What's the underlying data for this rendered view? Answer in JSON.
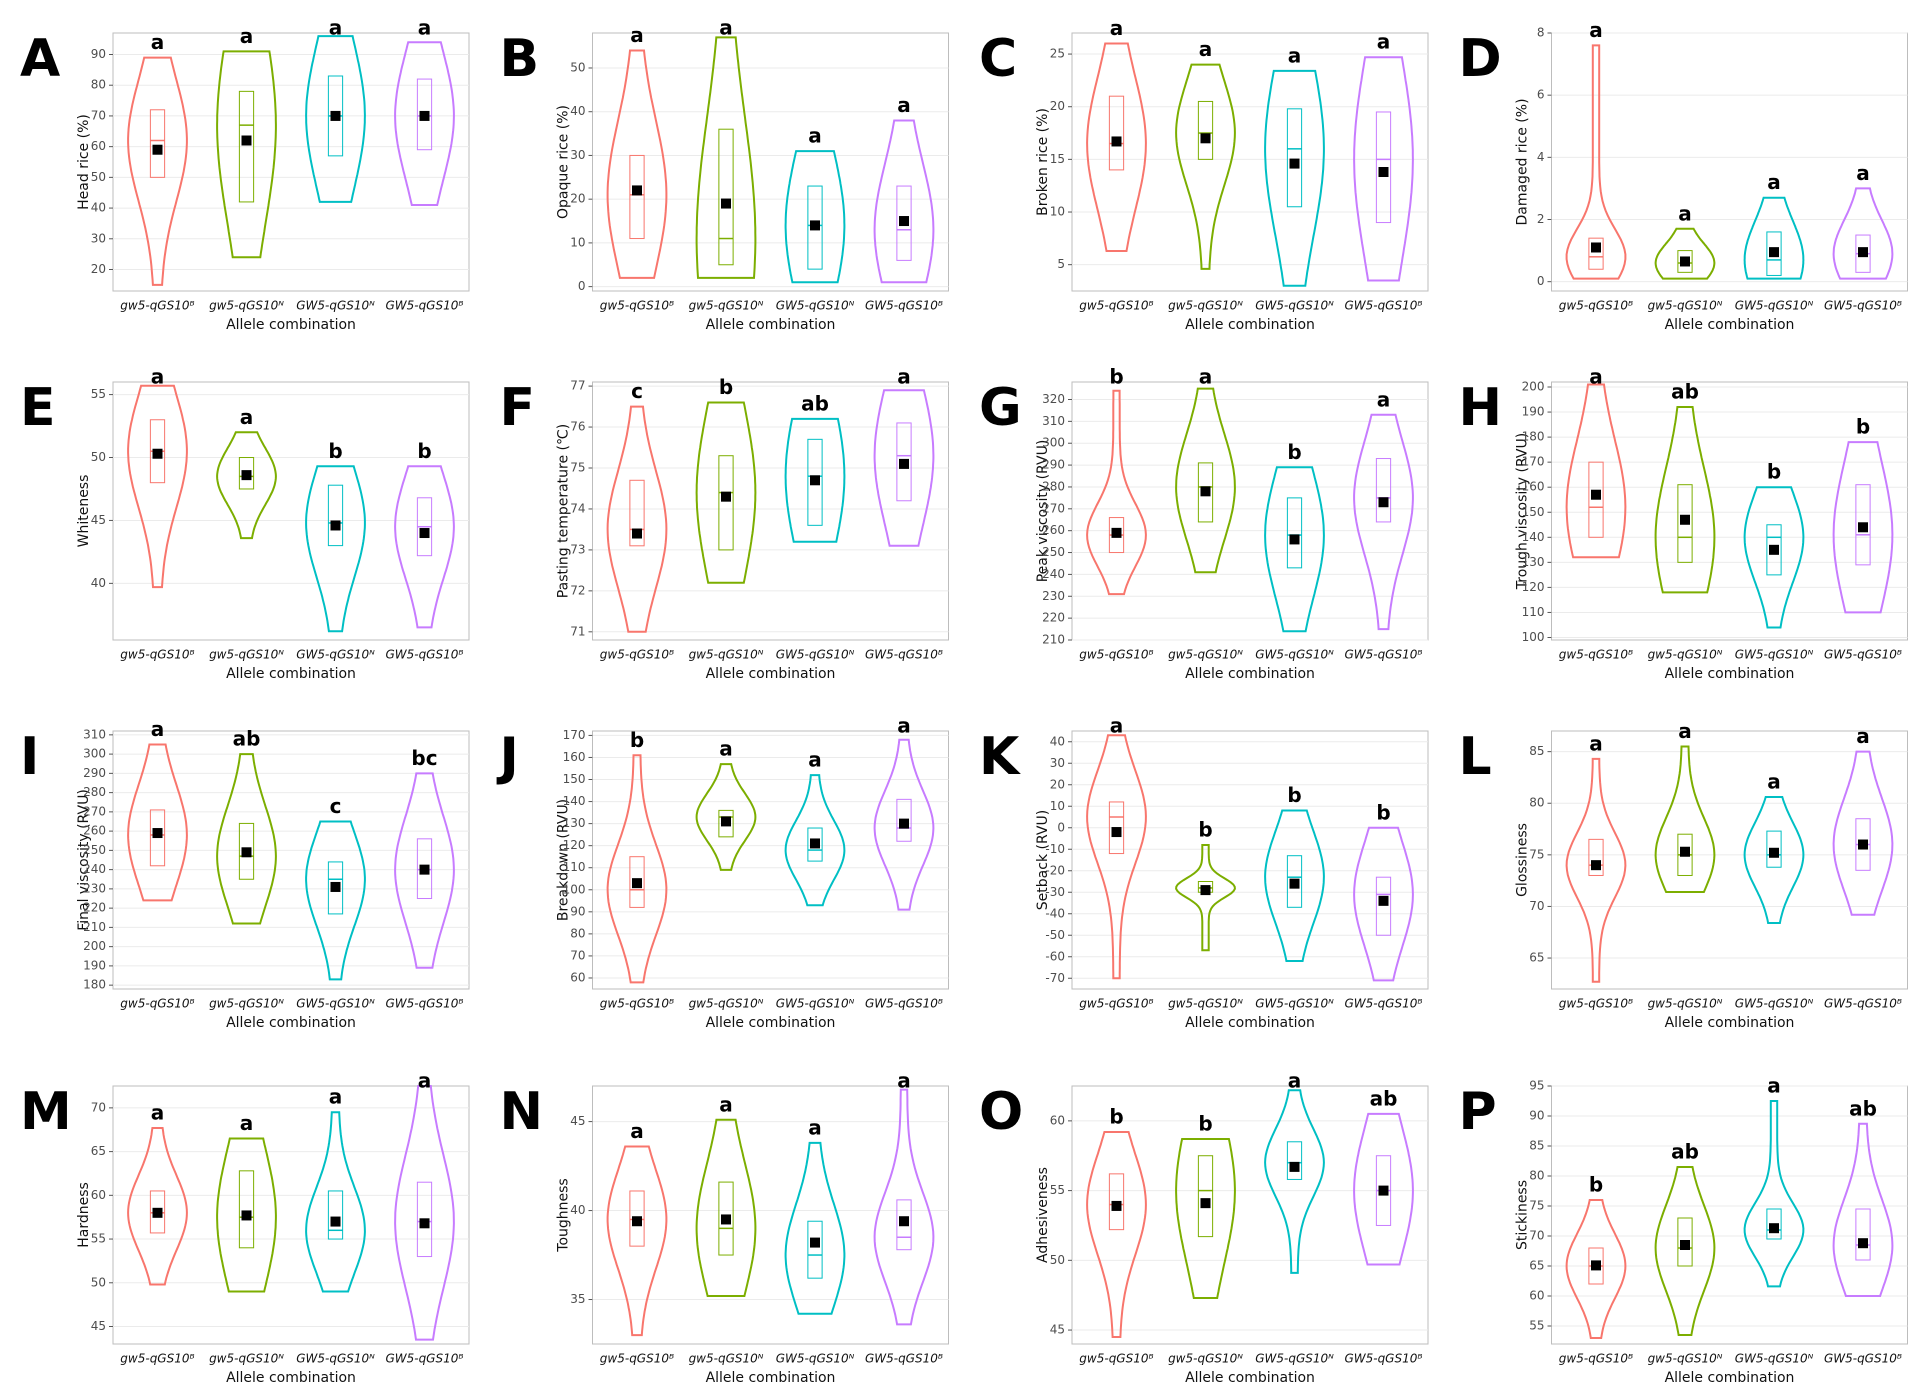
{
  "chart_data": [
    {
      "type": "violin",
      "panel": "A",
      "ylabel": "Head rice (%)",
      "xlabel": "Allele combination",
      "categories": [
        "gw5-qGS10ᴮ",
        "gw5-qGS10ᴺ",
        "GW5-qGS10ᴺ",
        "GW5-qGS10ᴮ"
      ],
      "colors": [
        "#F8766D",
        "#7CAE00",
        "#00BFC4",
        "#C77CFF"
      ],
      "ylim": [
        13,
        97
      ],
      "yticks": [
        20,
        30,
        40,
        50,
        60,
        70,
        80,
        90
      ],
      "grid": true,
      "mins": [
        15,
        24,
        42,
        41
      ],
      "q1": [
        50,
        42,
        57,
        59
      ],
      "medians": [
        62,
        67,
        70,
        70
      ],
      "q3": [
        72,
        78,
        83,
        82
      ],
      "maxs": [
        89,
        91,
        96,
        94
      ],
      "means": [
        59,
        62,
        70,
        70
      ],
      "letters": [
        "a",
        "a",
        "a",
        "a"
      ]
    },
    {
      "type": "violin",
      "panel": "B",
      "ylabel": "Opaque rice (%)",
      "xlabel": "Allele combination",
      "categories": [
        "gw5-qGS10ᴮ",
        "gw5-qGS10ᴺ",
        "GW5-qGS10ᴺ",
        "GW5-qGS10ᴮ"
      ],
      "colors": [
        "#F8766D",
        "#7CAE00",
        "#00BFC4",
        "#C77CFF"
      ],
      "ylim": [
        -1,
        58
      ],
      "yticks": [
        0,
        10,
        20,
        30,
        40,
        50
      ],
      "grid": true,
      "mins": [
        2,
        2,
        1,
        1
      ],
      "q1": [
        11,
        5,
        4,
        6
      ],
      "medians": [
        21,
        11,
        14,
        13
      ],
      "q3": [
        30,
        36,
        23,
        23
      ],
      "maxs": [
        54,
        57,
        31,
        38
      ],
      "means": [
        22,
        19,
        14,
        15
      ],
      "letters": [
        "a",
        "a",
        "a",
        "a"
      ]
    },
    {
      "type": "violin",
      "panel": "C",
      "ylabel": "Broken rice (%)",
      "xlabel": "Allele combination",
      "categories": [
        "gw5-qGS10ᴮ",
        "gw5-qGS10ᴺ",
        "GW5-qGS10ᴺ",
        "GW5-qGS10ᴮ"
      ],
      "colors": [
        "#F8766D",
        "#7CAE00",
        "#00BFC4",
        "#C77CFF"
      ],
      "ylim": [
        2.5,
        27
      ],
      "yticks": [
        5,
        10,
        15,
        20,
        25
      ],
      "grid": true,
      "mins": [
        6.3,
        4.6,
        3,
        3.5
      ],
      "q1": [
        14,
        15,
        10.5,
        9
      ],
      "medians": [
        16.5,
        17.5,
        16,
        15
      ],
      "q3": [
        21,
        20.5,
        19.8,
        19.5
      ],
      "maxs": [
        26,
        24,
        23.4,
        24.7
      ],
      "means": [
        16.7,
        17,
        14.6,
        13.8
      ],
      "letters": [
        "a",
        "a",
        "a",
        "a"
      ]
    },
    {
      "type": "violin",
      "panel": "D",
      "ylabel": "Damaged rice (%)",
      "xlabel": "Allele combination",
      "categories": [
        "gw5-qGS10ᴮ",
        "gw5-qGS10ᴺ",
        "GW5-qGS10ᴺ",
        "GW5-qGS10ᴮ"
      ],
      "colors": [
        "#F8766D",
        "#7CAE00",
        "#00BFC4",
        "#C77CFF"
      ],
      "ylim": [
        -0.3,
        8
      ],
      "yticks": [
        0,
        2,
        4,
        6,
        8
      ],
      "grid": true,
      "mins": [
        0.1,
        0.1,
        0.1,
        0.1
      ],
      "q1": [
        0.4,
        0.3,
        0.2,
        0.3
      ],
      "medians": [
        0.8,
        0.6,
        0.7,
        0.9
      ],
      "q3": [
        1.4,
        1,
        1.6,
        1.5
      ],
      "maxs": [
        7.6,
        1.7,
        2.7,
        3
      ],
      "means": [
        1.1,
        0.65,
        0.95,
        0.95
      ],
      "letters": [
        "a",
        "a",
        "a",
        "a"
      ]
    },
    {
      "type": "violin",
      "panel": "E",
      "ylabel": "Whiteness",
      "xlabel": "Allele combination",
      "categories": [
        "gw5-qGS10ᴮ",
        "gw5-qGS10ᴺ",
        "GW5-qGS10ᴺ",
        "GW5-qGS10ᴮ"
      ],
      "colors": [
        "#F8766D",
        "#7CAE00",
        "#00BFC4",
        "#C77CFF"
      ],
      "ylim": [
        35.5,
        56
      ],
      "yticks": [
        40,
        45,
        50,
        55
      ],
      "grid": true,
      "mins": [
        39.7,
        43.6,
        36.2,
        36.5
      ],
      "q1": [
        48,
        47.5,
        43,
        42.2
      ],
      "medians": [
        50.5,
        48.5,
        44.8,
        44.5
      ],
      "q3": [
        53,
        50,
        47.8,
        46.8
      ],
      "maxs": [
        55.7,
        52,
        49.3,
        49.3
      ],
      "means": [
        50.3,
        48.6,
        44.6,
        44
      ],
      "letters": [
        "a",
        "a",
        "b",
        "b"
      ]
    },
    {
      "type": "violin",
      "panel": "F",
      "ylabel": "Pasting temperature (℃)",
      "xlabel": "Allele combination",
      "categories": [
        "gw5-qGS10ᴮ",
        "gw5-qGS10ᴺ",
        "GW5-qGS10ᴺ",
        "GW5-qGS10ᴮ"
      ],
      "colors": [
        "#F8766D",
        "#7CAE00",
        "#00BFC4",
        "#C77CFF"
      ],
      "ylim": [
        70.8,
        77.1
      ],
      "yticks": [
        71,
        72,
        73,
        74,
        75,
        76,
        77
      ],
      "grid": true,
      "mins": [
        71,
        72.2,
        73.2,
        73.1
      ],
      "q1": [
        73.1,
        73,
        73.6,
        74.2
      ],
      "medians": [
        73.5,
        74.4,
        74.8,
        75.3
      ],
      "q3": [
        74.7,
        75.3,
        75.7,
        76.1
      ],
      "maxs": [
        76.5,
        76.6,
        76.2,
        76.9
      ],
      "means": [
        73.4,
        74.3,
        74.7,
        75.1
      ],
      "letters": [
        "c",
        "b",
        "ab",
        "a"
      ]
    },
    {
      "type": "violin",
      "panel": "G",
      "ylabel": "Peak viscosity (RVU)",
      "xlabel": "Allele combination",
      "categories": [
        "gw5-qGS10ᴮ",
        "gw5-qGS10ᴺ",
        "GW5-qGS10ᴺ",
        "GW5-qGS10ᴮ"
      ],
      "colors": [
        "#F8766D",
        "#7CAE00",
        "#00BFC4",
        "#C77CFF"
      ],
      "ylim": [
        210,
        328
      ],
      "yticks": [
        210,
        220,
        230,
        240,
        250,
        260,
        270,
        280,
        290,
        300,
        310,
        320
      ],
      "grid": true,
      "mins": [
        231,
        241,
        214,
        215
      ],
      "q1": [
        250,
        264,
        243,
        264
      ],
      "medians": [
        258,
        280,
        258,
        275
      ],
      "q3": [
        266,
        291,
        275,
        293
      ],
      "maxs": [
        324,
        325,
        289,
        313
      ],
      "means": [
        259,
        278,
        256,
        273
      ],
      "letters": [
        "b",
        "a",
        "b",
        "a"
      ]
    },
    {
      "type": "violin",
      "panel": "H",
      "ylabel": "Trough viscosity (RVU)",
      "xlabel": "Allele combination",
      "categories": [
        "gw5-qGS10ᴮ",
        "gw5-qGS10ᴺ",
        "GW5-qGS10ᴺ",
        "GW5-qGS10ᴮ"
      ],
      "colors": [
        "#F8766D",
        "#7CAE00",
        "#00BFC4",
        "#C77CFF"
      ],
      "ylim": [
        99,
        202
      ],
      "yticks": [
        100,
        110,
        120,
        130,
        140,
        150,
        160,
        170,
        180,
        190,
        200
      ],
      "grid": true,
      "mins": [
        132,
        118,
        104,
        110
      ],
      "q1": [
        140,
        130,
        125,
        129
      ],
      "medians": [
        152,
        140,
        140,
        141
      ],
      "q3": [
        170,
        161,
        145,
        161
      ],
      "maxs": [
        201,
        192,
        160,
        178
      ],
      "means": [
        157,
        147,
        135,
        144
      ],
      "letters": [
        "a",
        "ab",
        "b",
        "b"
      ]
    },
    {
      "type": "violin",
      "panel": "I",
      "ylabel": "Final viscosity (RVU)",
      "xlabel": "Allele combination",
      "categories": [
        "gw5-qGS10ᴮ",
        "gw5-qGS10ᴺ",
        "GW5-qGS10ᴺ",
        "GW5-qGS10ᴮ"
      ],
      "colors": [
        "#F8766D",
        "#7CAE00",
        "#00BFC4",
        "#C77CFF"
      ],
      "ylim": [
        178,
        312
      ],
      "yticks": [
        180,
        190,
        200,
        210,
        220,
        230,
        240,
        250,
        260,
        270,
        280,
        290,
        300,
        310
      ],
      "grid": true,
      "mins": [
        224,
        212,
        183,
        189
      ],
      "q1": [
        242,
        235,
        217,
        225
      ],
      "medians": [
        258,
        247,
        235,
        240
      ],
      "q3": [
        271,
        264,
        244,
        256
      ],
      "maxs": [
        305,
        300,
        265,
        290
      ],
      "means": [
        259,
        249,
        231,
        240
      ],
      "letters": [
        "a",
        "ab",
        "c",
        "bc"
      ]
    },
    {
      "type": "violin",
      "panel": "J",
      "ylabel": "Breakdown (RVU)",
      "xlabel": "Allele combination",
      "categories": [
        "gw5-qGS10ᴮ",
        "gw5-qGS10ᴺ",
        "GW5-qGS10ᴺ",
        "GW5-qGS10ᴮ"
      ],
      "colors": [
        "#F8766D",
        "#7CAE00",
        "#00BFC4",
        "#C77CFF"
      ],
      "ylim": [
        55,
        172
      ],
      "yticks": [
        60,
        70,
        80,
        90,
        100,
        110,
        120,
        130,
        140,
        150,
        160,
        170
      ],
      "grid": true,
      "mins": [
        58,
        109,
        93,
        91
      ],
      "q1": [
        92,
        124,
        113,
        122
      ],
      "medians": [
        100,
        133,
        118,
        128
      ],
      "q3": [
        115,
        136,
        128,
        141
      ],
      "maxs": [
        161,
        157,
        152,
        168
      ],
      "means": [
        103,
        131,
        121,
        130
      ],
      "letters": [
        "b",
        "a",
        "a",
        "a"
      ]
    },
    {
      "type": "violin",
      "panel": "K",
      "ylabel": "Setback (RVU)",
      "xlabel": "Allele combination",
      "categories": [
        "gw5-qGS10ᴮ",
        "gw5-qGS10ᴺ",
        "GW5-qGS10ᴺ",
        "GW5-qGS10ᴮ"
      ],
      "colors": [
        "#F8766D",
        "#7CAE00",
        "#00BFC4",
        "#C77CFF"
      ],
      "ylim": [
        -75,
        45
      ],
      "yticks": [
        -70,
        -60,
        -50,
        -40,
        -30,
        -20,
        -10,
        0,
        10,
        20,
        30,
        40
      ],
      "grid": true,
      "mins": [
        -70,
        -57,
        -62,
        -71
      ],
      "q1": [
        -12,
        -30,
        -37,
        -50
      ],
      "medians": [
        5,
        -28,
        -23,
        -31
      ],
      "q3": [
        12,
        -25,
        -13,
        -23
      ],
      "maxs": [
        43,
        -8,
        8,
        0
      ],
      "means": [
        -2,
        -29,
        -26,
        -34
      ],
      "letters": [
        "a",
        "b",
        "b",
        "b"
      ]
    },
    {
      "type": "violin",
      "panel": "L",
      "ylabel": "Glossiness",
      "xlabel": "Allele combination",
      "categories": [
        "gw5-qGS10ᴮ",
        "gw5-qGS10ᴺ",
        "GW5-qGS10ᴺ",
        "GW5-qGS10ᴮ"
      ],
      "colors": [
        "#F8766D",
        "#7CAE00",
        "#00BFC4",
        "#C77CFF"
      ],
      "ylim": [
        62,
        87
      ],
      "yticks": [
        65,
        70,
        75,
        80,
        85
      ],
      "grid": true,
      "mins": [
        62.7,
        71.4,
        68.4,
        69.2
      ],
      "q1": [
        73,
        73,
        73.8,
        73.5
      ],
      "medians": [
        74,
        75,
        75,
        76
      ],
      "q3": [
        76.5,
        77,
        77.3,
        78.5
      ],
      "maxs": [
        84.3,
        85.5,
        80.6,
        85
      ],
      "means": [
        74,
        75.3,
        75.2,
        76
      ],
      "letters": [
        "a",
        "a",
        "a",
        "a"
      ]
    },
    {
      "type": "violin",
      "panel": "M",
      "ylabel": "Hardness",
      "xlabel": "Allele combination",
      "categories": [
        "gw5-qGS10ᴮ",
        "gw5-qGS10ᴺ",
        "GW5-qGS10ᴺ",
        "GW5-qGS10ᴮ"
      ],
      "colors": [
        "#F8766D",
        "#7CAE00",
        "#00BFC4",
        "#C77CFF"
      ],
      "ylim": [
        43,
        72.5
      ],
      "yticks": [
        45,
        50,
        55,
        60,
        65,
        70
      ],
      "grid": true,
      "mins": [
        49.8,
        49,
        49,
        43.5
      ],
      "q1": [
        55.7,
        54,
        55,
        53
      ],
      "medians": [
        58,
        57.5,
        56,
        57
      ],
      "q3": [
        60.5,
        62.8,
        60.5,
        61.5
      ],
      "maxs": [
        67.7,
        66.5,
        69.5,
        72.5
      ],
      "means": [
        58,
        57.7,
        57,
        56.8
      ],
      "letters": [
        "a",
        "a",
        "a",
        "a"
      ]
    },
    {
      "type": "violin",
      "panel": "N",
      "ylabel": "Toughness",
      "xlabel": "Allele combination",
      "categories": [
        "gw5-qGS10ᴮ",
        "gw5-qGS10ᴺ",
        "GW5-qGS10ᴺ",
        "GW5-qGS10ᴮ"
      ],
      "colors": [
        "#F8766D",
        "#7CAE00",
        "#00BFC4",
        "#C77CFF"
      ],
      "ylim": [
        32.5,
        47
      ],
      "yticks": [
        35,
        40,
        45
      ],
      "grid": true,
      "mins": [
        33,
        35.2,
        34.2,
        33.6
      ],
      "q1": [
        38,
        37.5,
        36.2,
        37.8
      ],
      "medians": [
        39.5,
        39,
        37.5,
        38.5
      ],
      "q3": [
        41.1,
        41.6,
        39.4,
        40.6
      ],
      "maxs": [
        43.6,
        45.1,
        43.8,
        46.8
      ],
      "means": [
        39.4,
        39.5,
        38.2,
        39.4
      ],
      "letters": [
        "a",
        "a",
        "a",
        "a"
      ]
    },
    {
      "type": "violin",
      "panel": "O",
      "ylabel": "Adhesiveness",
      "xlabel": "Allele combination",
      "categories": [
        "gw5-qGS10ᴮ",
        "gw5-qGS10ᴺ",
        "GW5-qGS10ᴺ",
        "GW5-qGS10ᴮ"
      ],
      "colors": [
        "#F8766D",
        "#7CAE00",
        "#00BFC4",
        "#C77CFF"
      ],
      "ylim": [
        44,
        62.5
      ],
      "yticks": [
        45,
        50,
        55,
        60
      ],
      "grid": true,
      "mins": [
        44.5,
        47.3,
        49.1,
        49.7
      ],
      "q1": [
        52.2,
        51.7,
        55.8,
        52.5
      ],
      "medians": [
        54,
        55,
        57,
        55
      ],
      "q3": [
        56.2,
        57.5,
        58.5,
        57.5
      ],
      "maxs": [
        59.2,
        58.7,
        62.2,
        60.5
      ],
      "means": [
        53.9,
        54.1,
        56.7,
        55
      ],
      "letters": [
        "b",
        "b",
        "a",
        "ab"
      ]
    },
    {
      "type": "violin",
      "panel": "P",
      "ylabel": "Stickiness",
      "xlabel": "Allele combination",
      "categories": [
        "gw5-qGS10ᴮ",
        "gw5-qGS10ᴺ",
        "GW5-qGS10ᴺ",
        "GW5-qGS10ᴮ"
      ],
      "colors": [
        "#F8766D",
        "#7CAE00",
        "#00BFC4",
        "#C77CFF"
      ],
      "ylim": [
        52,
        95
      ],
      "yticks": [
        55,
        60,
        65,
        70,
        75,
        80,
        85,
        90,
        95
      ],
      "grid": true,
      "mins": [
        53,
        53.5,
        61.6,
        60
      ],
      "q1": [
        62,
        65,
        69.5,
        66
      ],
      "medians": [
        65,
        68,
        71,
        68.5
      ],
      "q3": [
        68,
        73,
        74.5,
        74.5
      ],
      "maxs": [
        76,
        81.5,
        92.5,
        88.7
      ],
      "means": [
        65.1,
        68.5,
        71.3,
        68.8
      ],
      "letters": [
        "b",
        "ab",
        "a",
        "ab"
      ]
    }
  ]
}
